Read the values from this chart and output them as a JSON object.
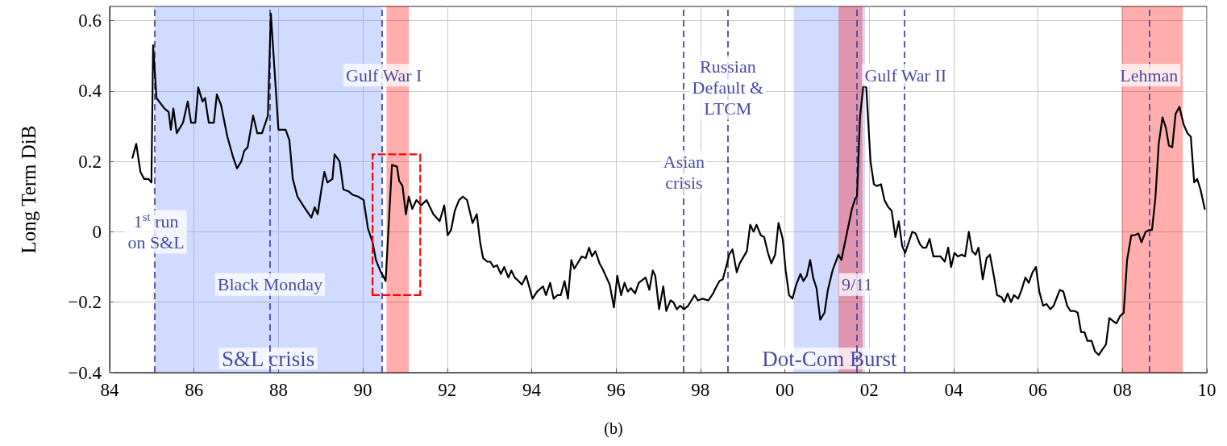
{
  "chart_data": {
    "type": "line",
    "ylabel": "Long Term DiB",
    "xlim": [
      1984,
      2010
    ],
    "ylim": [
      -0.4,
      0.64
    ],
    "xticks": [
      {
        "value": 1984,
        "label": "84"
      },
      {
        "value": 1986,
        "label": "86"
      },
      {
        "value": 1988,
        "label": "88"
      },
      {
        "value": 1990,
        "label": "90"
      },
      {
        "value": 1992,
        "label": "92"
      },
      {
        "value": 1994,
        "label": "94"
      },
      {
        "value": 1996,
        "label": "96"
      },
      {
        "value": 1998,
        "label": "98"
      },
      {
        "value": 2000,
        "label": "00"
      },
      {
        "value": 2002,
        "label": "02"
      },
      {
        "value": 2004,
        "label": "04"
      },
      {
        "value": 2006,
        "label": "06"
      },
      {
        "value": 2008,
        "label": "08"
      },
      {
        "value": 2010,
        "label": "10"
      }
    ],
    "yticks": [
      {
        "value": -0.4,
        "label": "−0.4"
      },
      {
        "value": -0.2,
        "label": "−0.2"
      },
      0,
      0.2,
      0.4,
      0.6
    ],
    "grid": true,
    "marker": "none",
    "line_style": "solid",
    "series": [
      {
        "color": "#000000",
        "x": [
          1984.54,
          1984.63,
          1984.73,
          1984.82,
          1984.92,
          1984.99,
          1985.03,
          1985.11,
          1985.3,
          1985.4,
          1985.45,
          1985.51,
          1985.59,
          1985.74,
          1985.85,
          1985.93,
          1986.03,
          1986.1,
          1986.2,
          1986.26,
          1986.35,
          1986.47,
          1986.54,
          1986.64,
          1986.79,
          1986.93,
          1987.02,
          1987.12,
          1987.19,
          1987.27,
          1987.4,
          1987.5,
          1987.61,
          1987.75,
          1987.82,
          1988.0,
          1988.17,
          1988.26,
          1988.34,
          1988.45,
          1988.61,
          1988.78,
          1988.86,
          1988.93,
          1989.03,
          1989.09,
          1989.16,
          1989.28,
          1989.33,
          1989.45,
          1989.54,
          1989.66,
          1989.76,
          1989.89,
          1990.02,
          1990.12,
          1990.23,
          1990.31,
          1990.41,
          1990.5,
          1990.54,
          1990.69,
          1990.81,
          1990.86,
          1990.94,
          1991.02,
          1991.09,
          1991.17,
          1991.27,
          1991.38,
          1991.51,
          1991.67,
          1991.82,
          1991.93,
          1992.01,
          1992.09,
          1992.18,
          1992.28,
          1992.37,
          1992.47,
          1992.6,
          1992.7,
          1992.78,
          1992.85,
          1992.95,
          1993.02,
          1993.1,
          1993.18,
          1993.27,
          1993.35,
          1993.45,
          1993.52,
          1993.6,
          1993.69,
          1993.77,
          1993.87,
          1993.94,
          1994.02,
          1994.13,
          1994.27,
          1994.34,
          1994.44,
          1994.52,
          1994.61,
          1994.69,
          1994.78,
          1994.86,
          1994.94,
          1995.01,
          1995.19,
          1995.28,
          1995.36,
          1995.43,
          1995.51,
          1995.61,
          1995.68,
          1995.85,
          1995.95,
          1996.03,
          1996.12,
          1996.2,
          1996.28,
          1996.35,
          1996.45,
          1996.54,
          1996.7,
          1996.79,
          1996.87,
          1996.93,
          1997.02,
          1997.12,
          1997.19,
          1997.29,
          1997.36,
          1997.44,
          1997.52,
          1997.61,
          1997.71,
          1997.86,
          1997.94,
          1998.05,
          1998.19,
          1998.3,
          1998.36,
          1998.45,
          1998.53,
          1998.63,
          1998.68,
          1998.76,
          1998.86,
          1998.93,
          1999.1,
          1999.18,
          1999.26,
          1999.33,
          1999.43,
          1999.51,
          1999.6,
          1999.68,
          1999.77,
          1999.85,
          1999.95,
          2000.02,
          2000.1,
          2000.18,
          2000.27,
          2000.37,
          2000.44,
          2000.52,
          2000.6,
          2000.67,
          2000.75,
          2000.84,
          2000.94,
          2001.02,
          2001.13,
          2001.27,
          2001.34,
          2001.46,
          2001.59,
          2001.67,
          2001.71,
          2001.78,
          2001.86,
          2001.93,
          2002.03,
          2002.11,
          2002.18,
          2002.28,
          2002.36,
          2002.45,
          2002.53,
          2002.62,
          2002.7,
          2002.78,
          2002.85,
          2003.02,
          2003.1,
          2003.2,
          2003.27,
          2003.35,
          2003.43,
          2003.52,
          2003.69,
          2003.79,
          2003.87,
          2003.94,
          2004.02,
          2004.1,
          2004.19,
          2004.27,
          2004.36,
          2004.44,
          2004.52,
          2004.59,
          2004.69,
          2004.78,
          2004.86,
          2004.96,
          2005.03,
          2005.13,
          2005.2,
          2005.28,
          2005.36,
          2005.43,
          2005.53,
          2005.61,
          2005.7,
          2005.78,
          2005.87,
          2005.95,
          2006.03,
          2006.12,
          2006.2,
          2006.29,
          2006.37,
          2006.45,
          2006.52,
          2006.6,
          2006.69,
          2006.77,
          2006.87,
          2006.94,
          2007.02,
          2007.1,
          2007.17,
          2007.27,
          2007.35,
          2007.44,
          2007.52,
          2007.61,
          2007.69,
          2007.79,
          2007.86,
          2007.94,
          2008.03,
          2008.11,
          2008.21,
          2008.28,
          2008.38,
          2008.45,
          2008.55,
          2008.63,
          2008.7,
          2008.78,
          2008.86,
          2008.95,
          2009.03,
          2009.1,
          2009.18,
          2009.26,
          2009.35,
          2009.45,
          2009.54,
          2009.62,
          2009.7,
          2009.77,
          2009.85,
          2009.95
        ],
        "values": [
          0.21,
          0.25,
          0.17,
          0.15,
          0.15,
          0.14,
          0.53,
          0.38,
          0.35,
          0.34,
          0.29,
          0.35,
          0.28,
          0.31,
          0.37,
          0.31,
          0.31,
          0.41,
          0.37,
          0.38,
          0.31,
          0.31,
          0.39,
          0.36,
          0.27,
          0.21,
          0.18,
          0.2,
          0.23,
          0.24,
          0.33,
          0.28,
          0.28,
          0.33,
          0.62,
          0.29,
          0.29,
          0.26,
          0.15,
          0.1,
          0.07,
          0.04,
          0.07,
          0.05,
          0.13,
          0.17,
          0.14,
          0.15,
          0.22,
          0.2,
          0.12,
          0.115,
          0.105,
          0.1,
          0.09,
          0.01,
          -0.03,
          -0.08,
          -0.11,
          -0.13,
          -0.14,
          0.19,
          0.185,
          0.145,
          0.13,
          0.05,
          0.1,
          0.065,
          0.09,
          0.075,
          0.09,
          0.05,
          0.03,
          0.075,
          -0.01,
          0.005,
          0.06,
          0.09,
          0.1,
          0.09,
          0.025,
          0.05,
          -0.03,
          -0.075,
          -0.085,
          -0.085,
          -0.1,
          -0.095,
          -0.12,
          -0.1,
          -0.13,
          -0.11,
          -0.13,
          -0.14,
          -0.15,
          -0.125,
          -0.155,
          -0.19,
          -0.17,
          -0.155,
          -0.18,
          -0.145,
          -0.19,
          -0.18,
          -0.18,
          -0.14,
          -0.19,
          -0.08,
          -0.105,
          -0.07,
          -0.075,
          -0.045,
          -0.07,
          -0.055,
          -0.09,
          -0.105,
          -0.15,
          -0.215,
          -0.125,
          -0.18,
          -0.145,
          -0.17,
          -0.16,
          -0.175,
          -0.145,
          -0.13,
          -0.165,
          -0.11,
          -0.125,
          -0.22,
          -0.155,
          -0.225,
          -0.195,
          -0.2,
          -0.22,
          -0.21,
          -0.22,
          -0.21,
          -0.18,
          -0.195,
          -0.19,
          -0.195,
          -0.175,
          -0.16,
          -0.14,
          -0.135,
          -0.09,
          -0.065,
          -0.05,
          -0.115,
          -0.09,
          -0.055,
          0.02,
          0.0,
          0.02,
          -0.01,
          -0.015,
          -0.06,
          -0.09,
          -0.065,
          0.025,
          -0.02,
          -0.11,
          -0.18,
          -0.19,
          -0.15,
          -0.12,
          -0.14,
          -0.125,
          -0.08,
          -0.13,
          -0.16,
          -0.25,
          -0.23,
          -0.165,
          -0.11,
          -0.065,
          -0.08,
          -0.01,
          0.065,
          0.095,
          0.1,
          0.325,
          0.415,
          0.41,
          0.2,
          0.135,
          0.13,
          0.135,
          0.09,
          0.07,
          0.06,
          -0.015,
          0.03,
          -0.04,
          -0.06,
          0.0,
          -0.005,
          -0.035,
          -0.045,
          -0.045,
          -0.02,
          -0.07,
          -0.07,
          -0.085,
          -0.045,
          -0.1,
          -0.06,
          -0.07,
          -0.065,
          -0.07,
          0.0,
          -0.055,
          -0.065,
          -0.045,
          -0.135,
          -0.075,
          -0.065,
          -0.13,
          -0.18,
          -0.185,
          -0.2,
          -0.175,
          -0.2,
          -0.18,
          -0.19,
          -0.165,
          -0.13,
          -0.145,
          -0.115,
          -0.1,
          -0.17,
          -0.21,
          -0.205,
          -0.22,
          -0.21,
          -0.185,
          -0.165,
          -0.17,
          -0.21,
          -0.225,
          -0.225,
          -0.23,
          -0.285,
          -0.285,
          -0.31,
          -0.31,
          -0.34,
          -0.35,
          -0.335,
          -0.32,
          -0.245,
          -0.255,
          -0.26,
          -0.24,
          -0.23,
          -0.08,
          -0.01,
          -0.01,
          -0.005,
          -0.03,
          0.0,
          0.005,
          0.005,
          0.095,
          0.25,
          0.325,
          0.295,
          0.245,
          0.24,
          0.335,
          0.355,
          0.305,
          0.28,
          0.27,
          0.14,
          0.15,
          0.12,
          0.065
        ]
      },
      {
        "color": "#ff0000",
        "line_style": "dashed",
        "x": [
          1990.23,
          1990.23,
          1991.36,
          1991.36
        ],
        "values": [
          -0.18,
          0.22,
          0.22,
          -0.18
        ]
      },
      {
        "color": "#ff0000",
        "line_style": "dashed",
        "x": [
          1990.23,
          1991.36
        ],
        "values": [
          -0.18,
          -0.18
        ]
      }
    ],
    "bands": [
      {
        "axis": "x",
        "from": 1985.07,
        "to": 1990.44,
        "label": "S&L crisis",
        "color": "#7090ff"
      },
      {
        "axis": "x",
        "from": 1990.56,
        "to": 1991.09,
        "label": null,
        "color": "#ff0000"
      },
      {
        "axis": "x",
        "from": 2000.21,
        "to": 2001.9,
        "label": "Dot-Com Burst",
        "color": "#7090ff"
      },
      {
        "axis": "x",
        "from": 2001.27,
        "to": 2001.84,
        "label": null,
        "color": "#ff0000"
      },
      {
        "axis": "x",
        "from": 2007.98,
        "to": 2009.43,
        "label": null,
        "color": "#ff0000"
      }
    ],
    "ref_lines": [
      {
        "axis": "x",
        "value": 1985.07,
        "color": "#4a4aa6",
        "line_style": "dashed"
      },
      {
        "axis": "x",
        "value": 1987.8,
        "color": "#4a4aa6",
        "line_style": "dashed"
      },
      {
        "axis": "x",
        "value": 1990.46,
        "color": "#4a4aa6",
        "line_style": "dashed"
      },
      {
        "axis": "x",
        "value": 1997.6,
        "color": "#4a4aa6",
        "line_style": "dashed"
      },
      {
        "axis": "x",
        "value": 1998.65,
        "color": "#4a4aa6",
        "line_style": "dashed"
      },
      {
        "axis": "x",
        "value": 2001.7,
        "color": "#4a4aa6",
        "line_style": "dashed"
      },
      {
        "axis": "x",
        "value": 2002.83,
        "color": "#4a4aa6",
        "line_style": "dashed"
      },
      {
        "axis": "x",
        "value": 2008.63,
        "color": "#4a4aa6",
        "line_style": "dashed"
      }
    ],
    "annotations": [
      {
        "text": "1$^{st}$ run\non S&L",
        "x": 1985.1,
        "y": 0.0
      },
      {
        "text": "Black Monday",
        "x": 1987.8,
        "y": -0.15
      },
      {
        "text": "Gulf War I",
        "x": 1990.5,
        "y": 0.445
      },
      {
        "text": "Asian\ncrisis",
        "x": 1997.61,
        "y": 0.17
      },
      {
        "text": "Russian\nDefault &\nLTCM",
        "x": 1998.65,
        "y": 0.41
      },
      {
        "text": "9/11",
        "x": 2001.71,
        "y": -0.15
      },
      {
        "text": "Gulf War II",
        "x": 2002.86,
        "y": 0.445
      },
      {
        "text": "Lehman",
        "x": 2008.63,
        "y": 0.445
      },
      "(b)"
    ]
  }
}
